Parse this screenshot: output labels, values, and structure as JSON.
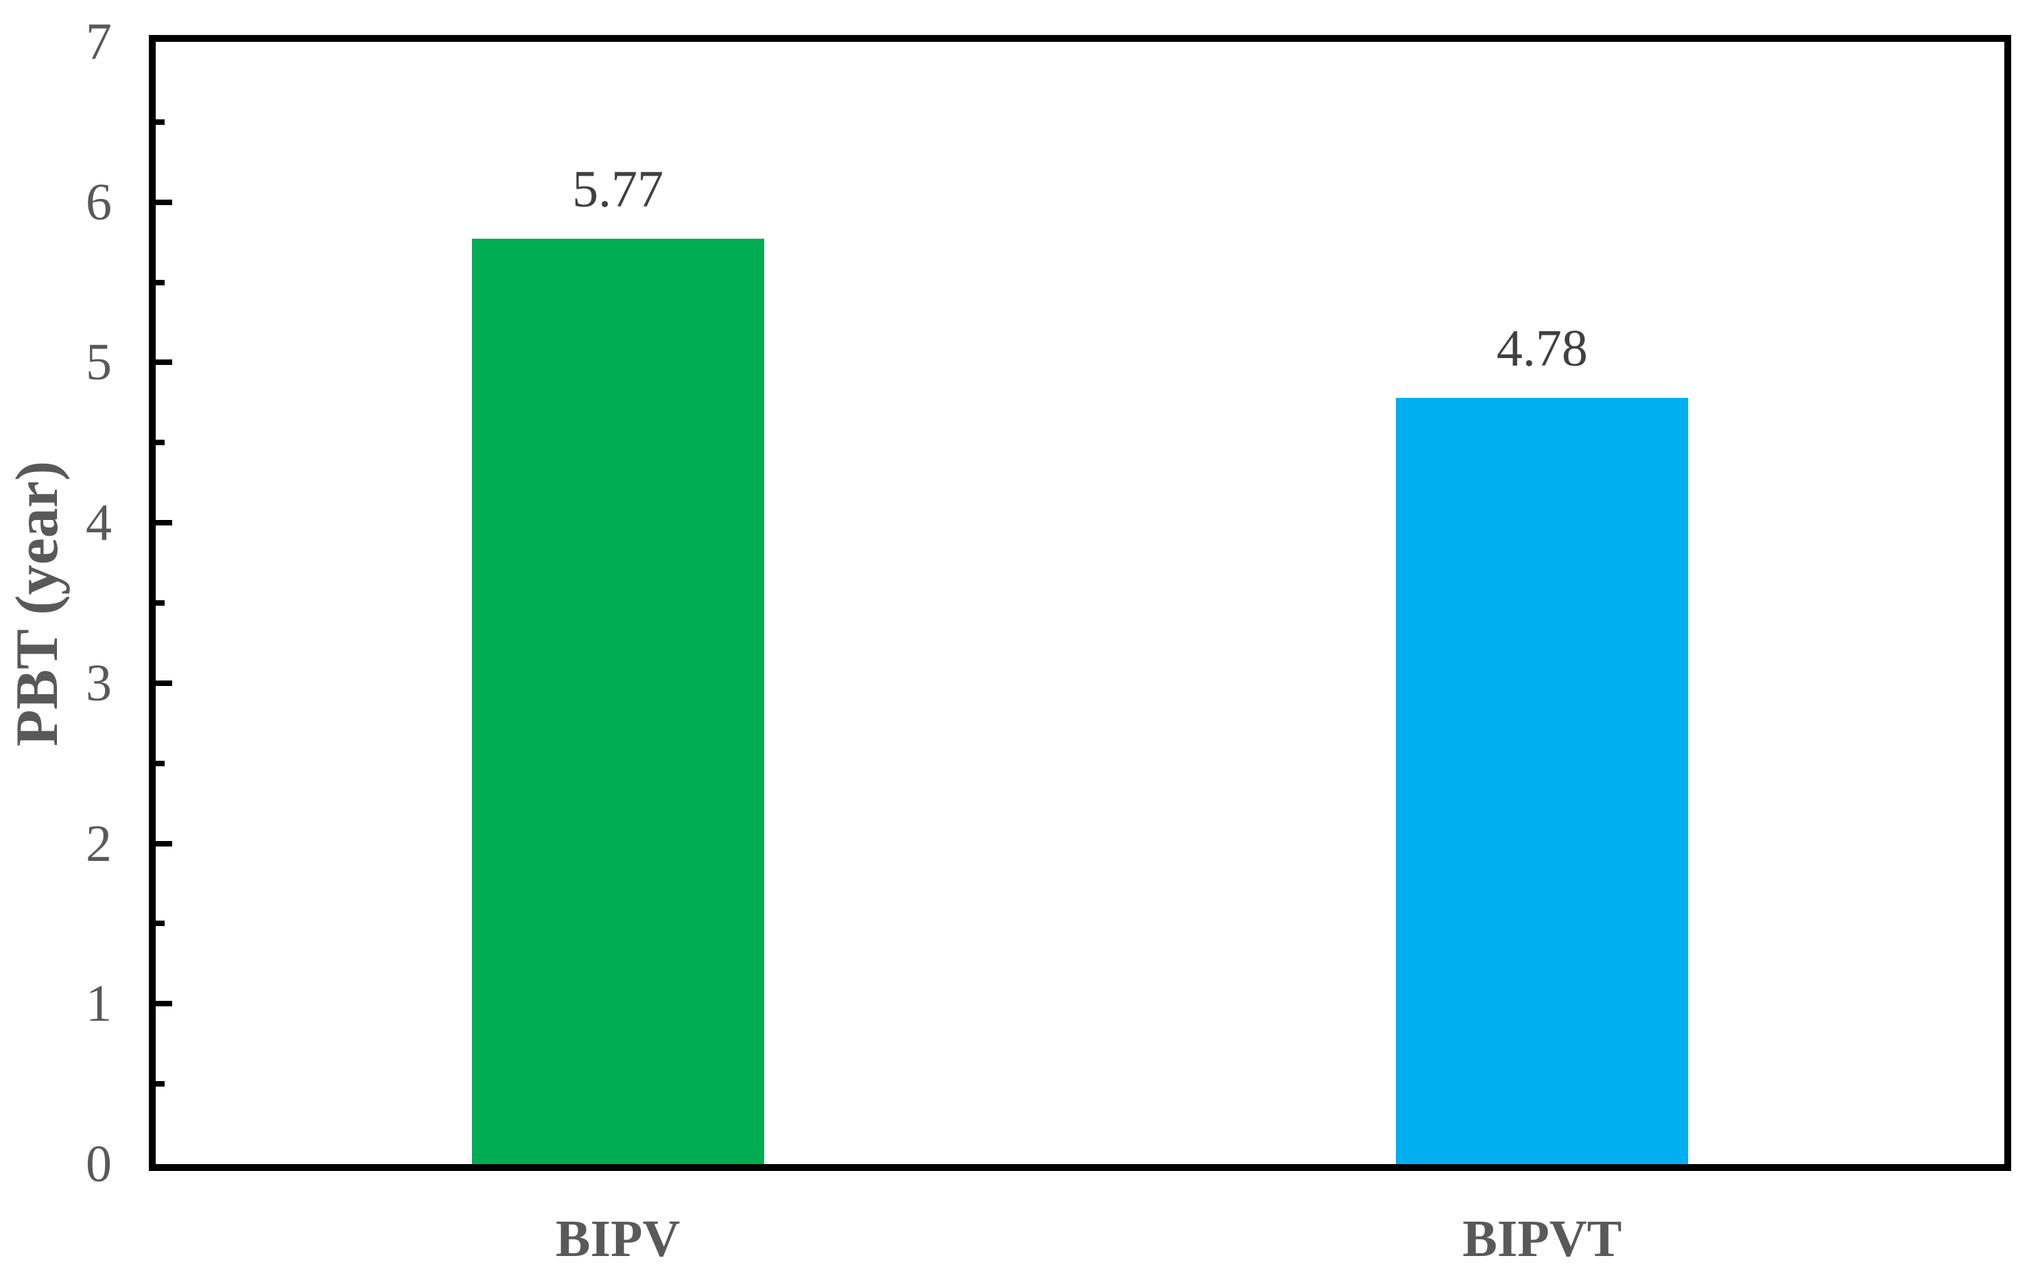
{
  "chart_data": {
    "type": "bar",
    "title": "",
    "xlabel": "",
    "ylabel": "PBT (year)",
    "categories": [
      "BIPV",
      "BIPVT"
    ],
    "values": [
      5.77,
      4.78
    ],
    "value_labels": [
      "5.77",
      "4.78"
    ],
    "bar_colors": [
      "#00AC52",
      "#00AFF0"
    ],
    "ylim": [
      0,
      7
    ],
    "y_major_step": 1,
    "y_minor_step": 0.5,
    "y_tick_labels": [
      "0",
      "1",
      "2",
      "3",
      "4",
      "5",
      "6",
      "7"
    ],
    "grid": false,
    "legend": false,
    "tick_direction": "in"
  },
  "colors": {
    "axis": "#000000",
    "tick_label": "#595959",
    "category_label": "#595959",
    "value_label": "#404040",
    "background": "#ffffff"
  }
}
